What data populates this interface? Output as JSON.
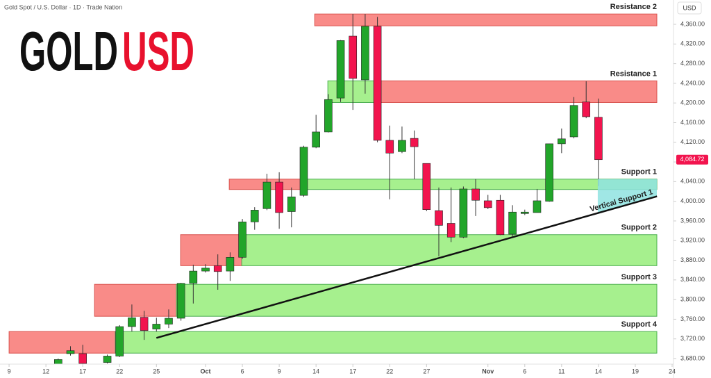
{
  "chart_data": {
    "type": "candlestick",
    "subtitle": "Gold Spot / U.S. Dollar · 1D · Trade Nation",
    "logo": {
      "left": "GOLD",
      "right": "USD"
    },
    "y_axis_label": "USD",
    "up_color": "#22a52a",
    "down_color": "#f2144e",
    "xlim": [
      -0.74,
      54
    ],
    "ylim": [
      3668.7,
      4409.5
    ],
    "xticks": [
      {
        "value": 0,
        "label": "9"
      },
      {
        "value": 3,
        "label": "12"
      },
      {
        "value": 6,
        "label": "17"
      },
      {
        "value": 9,
        "label": "22"
      },
      {
        "value": 12,
        "label": "25"
      },
      {
        "value": 16,
        "label": "Oct"
      },
      {
        "value": 19,
        "label": "6"
      },
      {
        "value": 22,
        "label": "9"
      },
      {
        "value": 25,
        "label": "14"
      },
      {
        "value": 28,
        "label": "17"
      },
      {
        "value": 31,
        "label": "22"
      },
      {
        "value": 34,
        "label": "27"
      },
      {
        "value": 39,
        "label": "Nov"
      },
      {
        "value": 42,
        "label": "6"
      },
      {
        "value": 45,
        "label": "11"
      },
      {
        "value": 48,
        "label": "14"
      },
      {
        "value": 51,
        "label": "19"
      },
      {
        "value": 54,
        "label": "24"
      }
    ],
    "yticks": [
      {
        "value": 3680,
        "label": "3,680.00"
      },
      {
        "value": 3720,
        "label": "3,720.00"
      },
      {
        "value": 3760,
        "label": "3,760.00"
      },
      {
        "value": 3800,
        "label": "3,800.00"
      },
      {
        "value": 3840,
        "label": "3,840.00"
      },
      {
        "value": 3880,
        "label": "3,880.00"
      },
      {
        "value": 3920,
        "label": "3,920.00"
      },
      {
        "value": 3960,
        "label": "3,960.00"
      },
      {
        "value": 4000,
        "label": "4,000.00"
      },
      {
        "value": 4040,
        "label": "4,040.00"
      },
      {
        "value": 4080,
        "label": "4,080.00"
      },
      {
        "value": 4120,
        "label": "4,120.00"
      },
      {
        "value": 4160,
        "label": "4,160.00"
      },
      {
        "value": 4200,
        "label": "4,200.00"
      },
      {
        "value": 4240,
        "label": "4,240.00"
      },
      {
        "value": 4280,
        "label": "4,280.00"
      },
      {
        "value": 4320,
        "label": "4,320.00"
      },
      {
        "value": 4360,
        "label": "4,360.00"
      }
    ],
    "grid": false,
    "x": [
      4,
      5,
      6,
      8,
      9,
      10,
      11,
      12,
      13,
      14,
      15,
      16,
      17,
      18,
      19,
      20,
      21,
      22,
      23,
      24,
      25,
      26,
      27,
      28,
      29,
      30,
      31,
      32,
      33,
      34,
      35,
      36,
      37,
      38,
      39,
      40,
      41,
      42,
      43,
      44,
      45,
      46,
      47,
      48
    ],
    "open": [
      3668,
      3690,
      3690,
      3672,
      3685,
      3745,
      3764,
      3740,
      3750,
      3762,
      3833,
      3858,
      3869,
      3858,
      3886,
      3958,
      3985,
      4039,
      3979,
      4012,
      4110,
      4141,
      4210,
      4336,
      4247,
      4356,
      4124,
      4101,
      4128,
      4077,
      3981,
      3955,
      3927,
      4025,
      4001,
      4002,
      3933,
      3975,
      3977,
      4000,
      4117,
      4131,
      4202,
      4171
    ],
    "high": [
      3680,
      3705,
      3708,
      3688,
      3748,
      3790,
      3777,
      3763,
      3780,
      3834,
      3871,
      3872,
      3892,
      3896,
      3964,
      3988,
      4056,
      4059,
      4028,
      4113,
      4176,
      4218,
      4328,
      4381,
      4381,
      4375,
      4154,
      4152,
      4144,
      4077,
      4028,
      4028,
      4030,
      4045,
      4013,
      4013,
      3992,
      3983,
      4025,
      4117,
      4148,
      4212,
      4244,
      4209
    ],
    "low": [
      3665,
      3686,
      3668,
      3670,
      3683,
      3735,
      3718,
      3735,
      3742,
      3757,
      3792,
      3855,
      3820,
      3838,
      3883,
      3942,
      3982,
      3944,
      3947,
      4009,
      4108,
      4140,
      4202,
      4186,
      4219,
      4120,
      4004,
      4098,
      4045,
      3980,
      3888,
      3917,
      3925,
      3970,
      3984,
      3931,
      3929,
      3972,
      3977,
      3999,
      4098,
      4128,
      4169,
      4031
    ],
    "close": [
      3678,
      3696,
      3670,
      3685,
      3745,
      3763,
      3737,
      3750,
      3762,
      3833,
      3858,
      3864,
      3857,
      3886,
      3958,
      3982,
      4039,
      3977,
      4009,
      4110,
      4141,
      4207,
      4327,
      4250,
      4356,
      4124,
      4098,
      4124,
      4111,
      3983,
      3951,
      3927,
      4025,
      4002,
      3987,
      3932,
      3978,
      3978,
      4001,
      4117,
      4127,
      4195,
      4172,
      4084.72
    ],
    "last_price": {
      "value": 4084.72,
      "label": "4,084.72"
    },
    "zones": [
      {
        "name": "Resistance 2",
        "top": 4381,
        "bottom": 4357,
        "fills": [
          {
            "from": 24.89,
            "color": "#f98b88"
          }
        ]
      },
      {
        "name": "Resistance 1",
        "top": 4245,
        "bottom": 4201,
        "fills": [
          {
            "from": 25.96,
            "color": "#a6f08e"
          },
          {
            "from": 29.92,
            "color": "#f98b88"
          }
        ]
      },
      {
        "name": "Support 1",
        "top": 4045,
        "bottom": 4024,
        "fills": [
          {
            "from": 17.93,
            "color": "#f98b88"
          },
          {
            "from": 24.15,
            "color": "#a6f08e"
          }
        ]
      },
      {
        "name": "Support 2",
        "top": 3932,
        "bottom": 3869,
        "fills": [
          {
            "from": 13.97,
            "color": "#f98b88"
          },
          {
            "from": 18.95,
            "color": "#a6f08e"
          }
        ]
      },
      {
        "name": "Support 3",
        "top": 3831,
        "bottom": 3766,
        "fills": [
          {
            "from": 6.96,
            "color": "#f98b88"
          },
          {
            "from": 13.63,
            "color": "#a6f08e"
          }
        ]
      },
      {
        "name": "Support 4",
        "top": 3735,
        "bottom": 3691,
        "fills": [
          {
            "from": 0,
            "color": "#f98b88"
          },
          {
            "from": 8.65,
            "color": "#a6f08e"
          }
        ]
      }
    ],
    "trendline": {
      "label": "Vertical Support 1",
      "x": [
        12,
        52.77
      ],
      "y": [
        3722,
        4010
      ]
    }
  }
}
